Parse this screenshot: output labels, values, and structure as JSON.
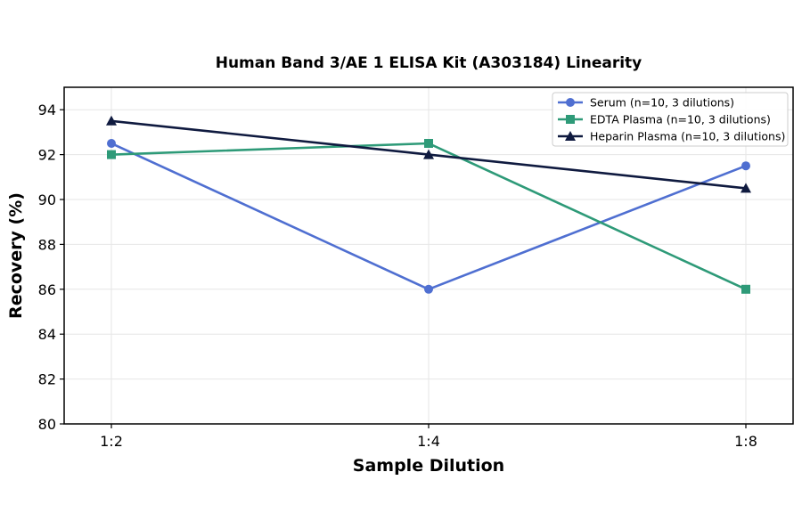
{
  "chart_data": {
    "type": "line",
    "title": "Human Band 3/AE 1 ELISA Kit (A303184) Linearity",
    "xlabel": "Sample Dilution",
    "ylabel": "Recovery (%)",
    "categories": [
      "1:2",
      "1:4",
      "1:8"
    ],
    "ylim": [
      80,
      95
    ],
    "yticks": [
      80,
      82,
      84,
      86,
      88,
      90,
      92,
      94
    ],
    "grid": true,
    "legend_position": "top-right",
    "series": [
      {
        "name": "Serum (n=10, 3 dilutions)",
        "values": [
          92.5,
          86.0,
          91.5
        ],
        "color": "#4f6fd1",
        "marker": "circle"
      },
      {
        "name": "EDTA Plasma (n=10, 3 dilutions)",
        "values": [
          92.0,
          92.5,
          86.0
        ],
        "color": "#2e9a78",
        "marker": "square"
      },
      {
        "name": "Heparin Plasma (n=10, 3 dilutions)",
        "values": [
          93.5,
          92.0,
          90.5
        ],
        "color": "#0f1a3f",
        "marker": "triangle"
      }
    ]
  }
}
